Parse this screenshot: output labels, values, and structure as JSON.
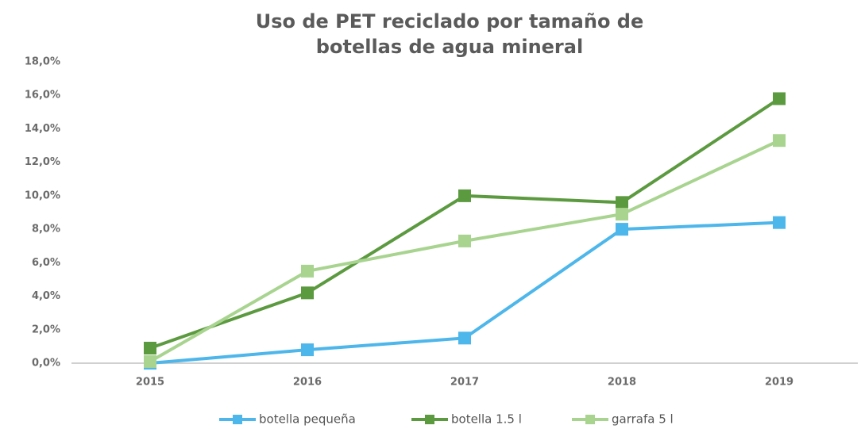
{
  "chart_data": {
    "type": "line",
    "title": [
      "Uso de PET reciclado por tamaño de",
      "botellas de agua mineral"
    ],
    "categories": [
      "2015",
      "2016",
      "2017",
      "2018",
      "2019"
    ],
    "series": [
      {
        "name": "botella pequeña",
        "color": "#4db6ea",
        "values": [
          0,
          0.8,
          1.5,
          8.0,
          8.4
        ]
      },
      {
        "name": "botella 1.5 l",
        "color": "#5c9a40",
        "values": [
          0.9,
          4.2,
          10.0,
          9.6,
          15.8
        ]
      },
      {
        "name": "garrafa 5 l",
        "color": "#a8d490",
        "values": [
          0.1,
          5.5,
          7.3,
          8.9,
          13.3
        ]
      }
    ],
    "ylim": [
      0,
      18
    ],
    "yticks": [
      {
        "value": 0,
        "label": "0,0%"
      },
      {
        "value": 2,
        "label": "2,0%"
      },
      {
        "value": 4,
        "label": "4,0%"
      },
      {
        "value": 6,
        "label": "6,0%"
      },
      {
        "value": 8,
        "label": "8,0%"
      },
      {
        "value": 10,
        "label": "10,0%"
      },
      {
        "value": 12,
        "label": "12,0%"
      },
      {
        "value": 14,
        "label": "14,0%"
      },
      {
        "value": 16,
        "label": "16,0%"
      },
      {
        "value": 18,
        "label": "18,0%"
      }
    ],
    "grid": false,
    "legend": "bottom"
  }
}
